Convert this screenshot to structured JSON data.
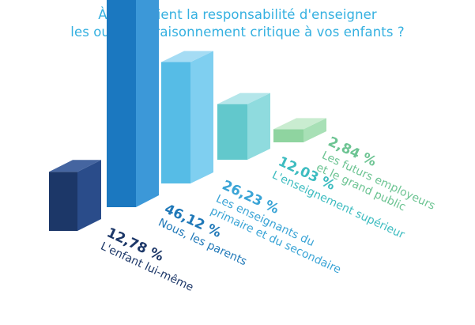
{
  "title_line1": "À qui revient la responsabilité d'enseigner",
  "title_line2": "les outils du raisonnement critique à vos enfants ?",
  "chart_data": {
    "type": "bar",
    "style": "3d-isometric",
    "title": "À qui revient la responsabilité d'enseigner les outils du raisonnement critique à vos enfants ?",
    "unit": "%",
    "categories": [
      [
        "L'enfant lui-même"
      ],
      [
        "Nous, les parents"
      ],
      [
        "Les enseignants du",
        "primaire et du secondaire"
      ],
      [
        "L'enseignement supérieur"
      ],
      [
        "Les futurs employeurs",
        "et le grand public"
      ]
    ],
    "value_labels": [
      "12,78 %",
      "46,12 %",
      "26,23 %",
      "12,03 %",
      "2,84 %"
    ],
    "values": [
      12.78,
      46.12,
      26.23,
      12.03,
      2.84
    ],
    "colors": [
      {
        "top": "#4565a0",
        "front": "#1c3768",
        "side": "#2a4c8a",
        "label": "#1c3768"
      },
      {
        "top": "#57b8ec",
        "front": "#1b78c0",
        "side": "#3c98d8",
        "label": "#1f78b8"
      },
      {
        "top": "#a5dcf4",
        "front": "#56bce6",
        "side": "#7fcff0",
        "label": "#3aa4d6"
      },
      {
        "top": "#b4e6ea",
        "front": "#62c8cc",
        "side": "#8fdbde",
        "label": "#3dbcc0"
      },
      {
        "top": "#c9ecd0",
        "front": "#8fd4a0",
        "side": "#a8e0b6",
        "label": "#6dc493"
      }
    ]
  }
}
